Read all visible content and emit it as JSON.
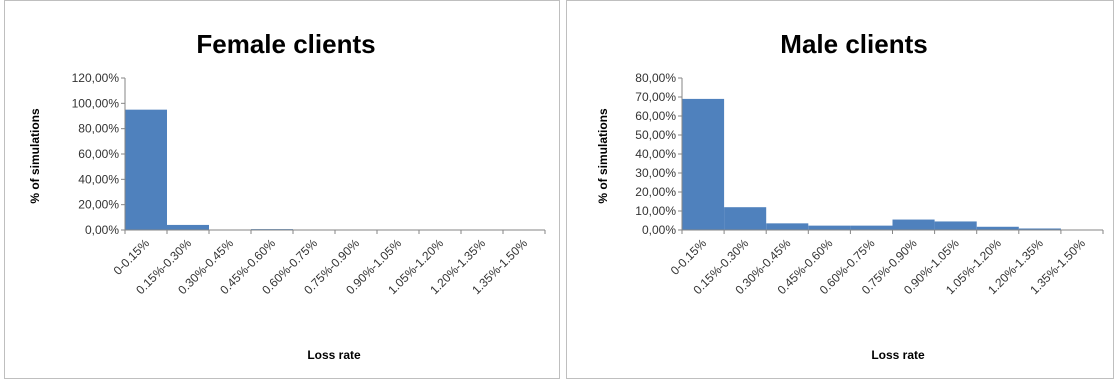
{
  "chart_data": [
    {
      "type": "bar",
      "title": "Female clients",
      "xlabel": "Loss rate",
      "ylabel": "% of simulations",
      "categories": [
        "0-0.15%",
        "0.15%-0.30%",
        "0.30%-0.45%",
        "0.45%-0.60%",
        "0.60%-0.75%",
        "0.75%-0.90%",
        "0.90%-1.05%",
        "1.05%-1.20%",
        "1.20%-1.35%",
        "1.35%-1.50%"
      ],
      "values": [
        95.0,
        4.0,
        0.3,
        0.7,
        0.0,
        0.0,
        0.0,
        0.0,
        0.0,
        0.0
      ],
      "ylim": [
        0,
        120
      ],
      "yticks": [
        "0,00%",
        "20,00%",
        "40,00%",
        "60,00%",
        "80,00%",
        "100,00%",
        "120,00%"
      ],
      "grid": false,
      "bar_color": "#4f81bd"
    },
    {
      "type": "bar",
      "title": "Male clients",
      "xlabel": "Loss rate",
      "ylabel": "% of simulations",
      "categories": [
        "0-0.15%",
        "0.15%-0.30%",
        "0.30%-0.45%",
        "0.45%-0.60%",
        "0.60%-0.75%",
        "0.75%-0.90%",
        "0.90%-1.05%",
        "1.05%-1.20%",
        "1.20%-1.35%",
        "1.35%-1.50%"
      ],
      "values": [
        69.0,
        12.0,
        3.5,
        2.3,
        2.3,
        5.5,
        4.5,
        1.7,
        0.8,
        0.2
      ],
      "ylim": [
        0,
        80
      ],
      "yticks": [
        "0,00%",
        "10,00%",
        "20,00%",
        "30,00%",
        "40,00%",
        "50,00%",
        "60,00%",
        "70,00%",
        "80,00%"
      ],
      "grid": false,
      "bar_color": "#4f81bd"
    }
  ]
}
